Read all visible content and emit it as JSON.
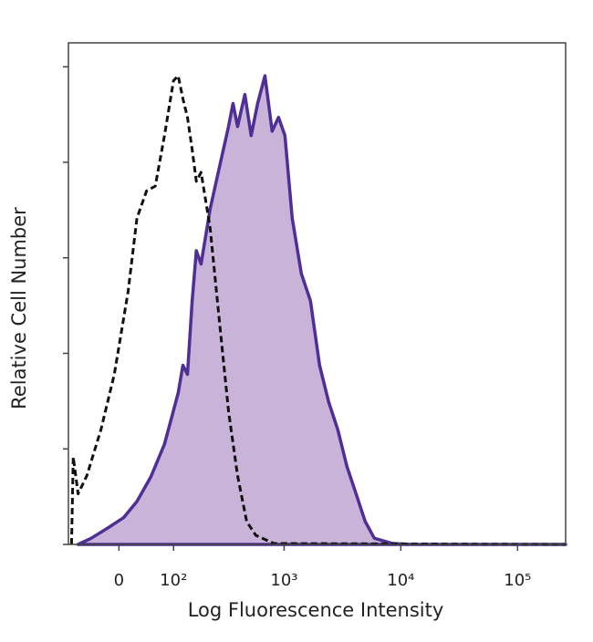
{
  "chart_data": {
    "type": "histogram-overlay",
    "xlabel": "Log Fluorescence Intensity",
    "ylabel": "Relative Cell Number",
    "xscale": "biexponential",
    "xlim": [
      -90,
      258000
    ],
    "xticks": [
      0,
      {
        "value": 100,
        "label": "10²"
      },
      {
        "value": 1000,
        "label": "10³"
      },
      {
        "value": 10000,
        "label": "10⁴"
      },
      {
        "value": 100000,
        "label": "10⁵"
      }
    ],
    "ylim": [
      0,
      105
    ],
    "yticks": [
      0,
      20,
      40,
      60,
      80,
      100
    ],
    "ytick_labels": false,
    "series": [
      {
        "color": "#4e2f96",
        "fill": "#c9b3d8",
        "style": "solid",
        "x": [
          -69,
          -44,
          -14,
          7,
          28,
          52,
          79,
          112,
          125,
          139,
          154,
          169,
          187,
          226,
          273,
          330,
          361,
          396,
          458,
          520,
          591,
          683,
          788,
          895,
          1016,
          1173,
          1405,
          1683,
          2015,
          2412,
          2888,
          3457,
          4138,
          4953,
          5929,
          8500,
          12170,
          258000
        ],
        "values": [
          0,
          1.3,
          3.7,
          5.6,
          9.0,
          14.2,
          21,
          31.7,
          37.5,
          35.6,
          50.9,
          61.5,
          58.7,
          70.2,
          78.8,
          87.5,
          92.3,
          87.5,
          94.2,
          85.6,
          92.3,
          98.1,
          86.5,
          89.4,
          85.6,
          68.3,
          56.7,
          51,
          37.5,
          29.8,
          24,
          16.3,
          10.6,
          4.8,
          1.3,
          0.2,
          0,
          0
        ]
      },
      {
        "color": "#111111",
        "style": "dashed",
        "x": [
          -83,
          -79,
          -69,
          -52,
          -28,
          -7,
          14,
          28,
          44,
          60,
          79,
          100,
          112,
          125,
          139,
          154,
          169,
          187,
          226,
          273,
          330,
          396,
          475,
          570,
          818,
          258000
        ],
        "values": [
          0,
          18.3,
          10.6,
          14.4,
          24,
          35.6,
          52.9,
          68.3,
          74,
          75,
          85.6,
          97.1,
          98.1,
          93.3,
          89.4,
          82.7,
          76,
          77.9,
          66.3,
          47.1,
          27.9,
          14.4,
          4.8,
          1.9,
          0.2,
          0
        ]
      }
    ]
  }
}
